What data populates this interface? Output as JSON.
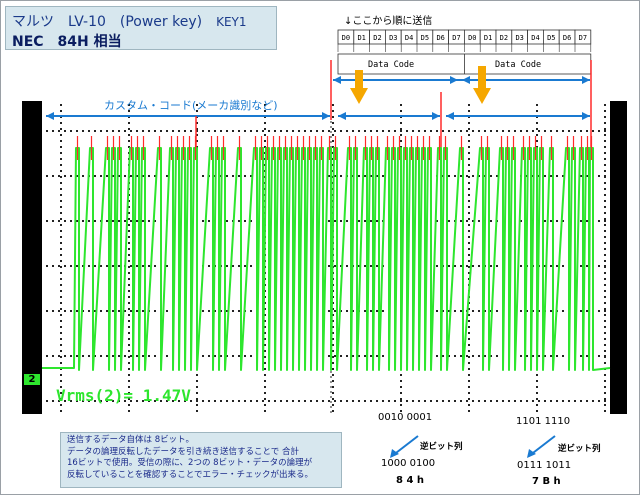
{
  "header": {
    "line1": "マルツ　LV-10　(Power key)",
    "key": "KEY1",
    "line2": "NEC　84H 相当"
  },
  "send_note": "↓ここから順に送信",
  "bit_labels": [
    "D0",
    "D1",
    "D2",
    "D3",
    "D4",
    "D5",
    "D6",
    "D7",
    "D0",
    "D1",
    "D2",
    "D3",
    "D4",
    "D5",
    "D6",
    "D7"
  ],
  "data_code_label": "Data Code",
  "custom_code_label": "カスタム・コード(メーカ識別など)",
  "channel_badge": "2",
  "measurement": "Vrms(2)= 1.47V",
  "note_lines": [
    "送信するデータ自体は 8ビット。",
    "データの論理反転したデータを引き続き送信することで 合計",
    "16ビットで使用。受信の際に、2つの 8ビット・データの論理が",
    "反転していることを確認することでエラー・チェックが出来る。"
  ],
  "decode": {
    "left": {
      "raw": "0010 0001",
      "rev_label": "逆ビット列",
      "reversed": "1000 0100",
      "hex": "8 4 h"
    },
    "right": {
      "raw": "1101 1110",
      "rev_label": "逆ビット列",
      "reversed": "0111 1011",
      "hex": "7 B h"
    }
  },
  "colors": {
    "trace": "#2ee62e",
    "marker": "#ff2a2a",
    "arrow": "#1a7ad1",
    "pointer": "#f5a700",
    "panel": "#d7e7ee"
  },
  "chart_data": {
    "type": "line",
    "series": [
      {
        "pulses": [
          76,
          90,
          106,
          112,
          118,
          130,
          136,
          142,
          158,
          170,
          176,
          182,
          188,
          194,
          210,
          216,
          222,
          238,
          254,
          260,
          266,
          272,
          278,
          284,
          290,
          296,
          302,
          308,
          314,
          320,
          328,
          334,
          348,
          354,
          364,
          370,
          376,
          386,
          392,
          398,
          404,
          410,
          416,
          422,
          428,
          438,
          444,
          460,
          480,
          486,
          500,
          506,
          512,
          522,
          528,
          534,
          540,
          550,
          566,
          572,
          580,
          586,
          590
        ]
      }
    ]
  }
}
